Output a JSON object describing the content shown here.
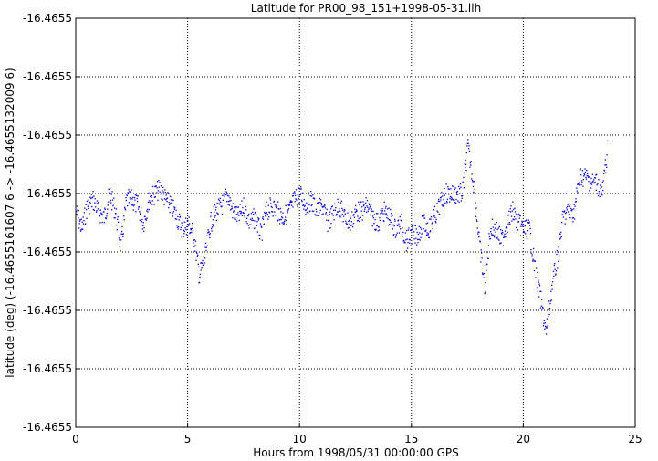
{
  "chart_data": {
    "type": "scatter",
    "title": "Latitude for PR00_98_151+1998-05-31.llh",
    "xlabel": "Hours from 1998/05/31 00:00:00 GPS",
    "ylabel": "latitude (deg) (-16.4655161607 6 -> -16.4655132009 6)",
    "xlim": [
      0,
      25
    ],
    "xticks": [
      "0",
      "5",
      "10",
      "15",
      "20",
      "25"
    ],
    "ytick_labels": [
      "-16.4655",
      "-16.4655",
      "-16.4655",
      "-16.4655",
      "-16.4655",
      "-16.4655",
      "-16.4655",
      "-16.4655"
    ],
    "grid": true,
    "legend": "none",
    "point_color": "#0000cc",
    "series_profile": {
      "note": "dense latitude time series; offsets in ytick-step units relative to top tick, sampled values",
      "x": [
        0.0,
        0.25,
        0.5,
        0.75,
        1.0,
        1.25,
        1.5,
        1.75,
        2.0,
        2.25,
        2.5,
        2.75,
        3.0,
        3.25,
        3.5,
        3.75,
        4.0,
        4.25,
        4.5,
        4.75,
        5.0,
        5.25,
        5.5,
        5.75,
        6.0,
        6.25,
        6.5,
        6.75,
        7.0,
        7.25,
        7.5,
        7.75,
        8.0,
        8.25,
        8.5,
        8.75,
        9.0,
        9.25,
        9.5,
        9.75,
        10.0,
        10.25,
        10.5,
        10.75,
        11.0,
        11.25,
        11.5,
        11.75,
        12.0,
        12.25,
        12.5,
        12.75,
        13.0,
        13.25,
        13.5,
        13.75,
        14.0,
        14.25,
        14.5,
        14.75,
        15.0,
        15.25,
        15.5,
        15.75,
        16.0,
        16.25,
        16.5,
        16.75,
        17.0,
        17.25,
        17.5,
        17.75,
        18.0,
        18.25,
        18.5,
        18.75,
        19.0,
        19.25,
        19.5,
        19.75,
        20.0,
        20.25,
        20.5,
        20.75,
        21.0,
        21.25,
        21.5,
        21.75,
        22.0,
        22.25,
        22.5,
        22.75,
        23.0,
        23.25,
        23.5,
        23.75
      ],
      "y": [
        3.3,
        3.6,
        3.2,
        3.1,
        3.3,
        3.4,
        3.0,
        3.3,
        3.9,
        3.1,
        3.1,
        3.2,
        3.5,
        3.1,
        3.0,
        2.9,
        3.1,
        3.2,
        3.4,
        3.6,
        3.5,
        3.7,
        4.4,
        4.1,
        3.5,
        3.3,
        3.2,
        3.0,
        3.3,
        3.4,
        3.2,
        3.5,
        3.4,
        3.7,
        3.3,
        3.2,
        3.3,
        3.4,
        3.3,
        3.1,
        3.0,
        3.2,
        3.1,
        3.3,
        3.2,
        3.5,
        3.3,
        3.2,
        3.4,
        3.5,
        3.3,
        3.3,
        3.2,
        3.4,
        3.5,
        3.3,
        3.4,
        3.6,
        3.5,
        3.8,
        3.7,
        3.7,
        3.5,
        3.6,
        3.4,
        3.2,
        3.0,
        3.0,
        3.0,
        3.0,
        2.2,
        2.8,
        3.8,
        4.6,
        3.6,
        3.6,
        3.8,
        3.5,
        3.3,
        3.5,
        3.6,
        3.6,
        4.3,
        4.8,
        5.4,
        4.6,
        4.1,
        3.4,
        3.3,
        3.3,
        2.7,
        2.7,
        2.8,
        2.8,
        3.0,
        2.2
      ]
    }
  }
}
